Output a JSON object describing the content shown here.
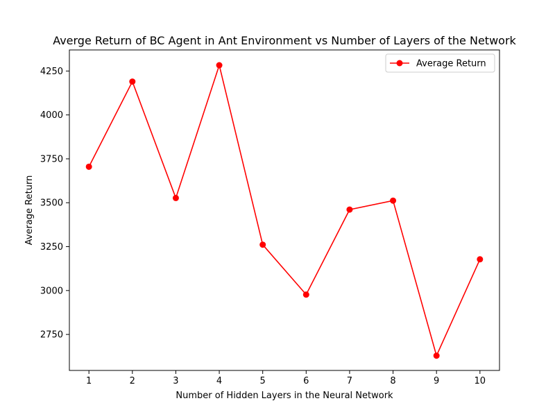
{
  "chart_data": {
    "type": "line",
    "title": "Averge Return of BC Agent in Ant Environment  vs Number of Layers of the Network",
    "xlabel": "Number of Hidden Layers in the Neural Network",
    "ylabel": "Average Return",
    "x": [
      1,
      2,
      3,
      4,
      5,
      6,
      7,
      8,
      9,
      10
    ],
    "xlim": [
      0.55,
      10.45
    ],
    "ylim": [
      2545,
      4370
    ],
    "x_ticks": [
      "1",
      "2",
      "3",
      "4",
      "5",
      "6",
      "7",
      "8",
      "9",
      "10"
    ],
    "y_ticks": [
      "2750",
      "3000",
      "3250",
      "3500",
      "3750",
      "4000",
      "4250"
    ],
    "grid": false,
    "legend_position": "top-right",
    "series": [
      {
        "name": "Average Return",
        "color": "#ff0000",
        "marker": "circle",
        "values": [
          3705,
          4190,
          3527,
          4283,
          3261,
          2977,
          3461,
          3512,
          2629,
          3178
        ]
      }
    ]
  }
}
